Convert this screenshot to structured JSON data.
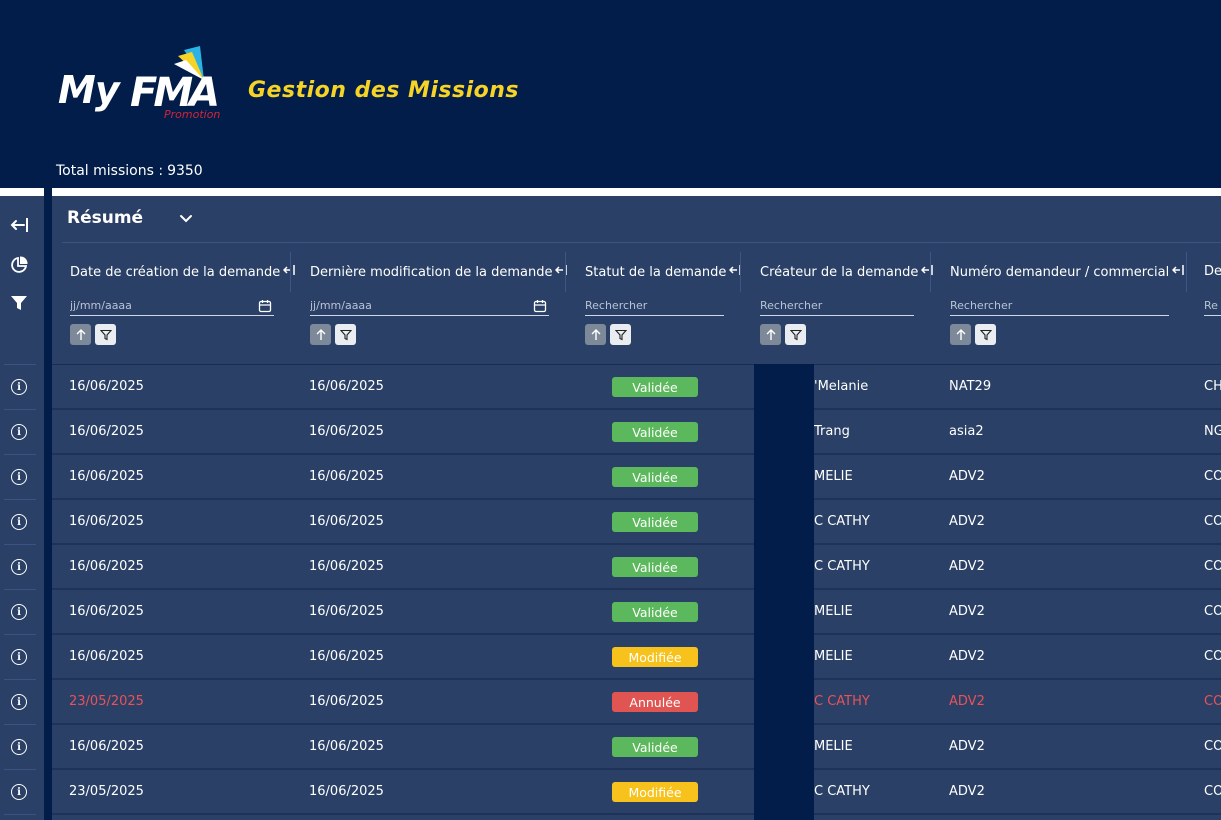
{
  "header": {
    "logo_my": "My",
    "logo_fma": "FMA",
    "logo_promo": "Promotion",
    "app_title": "Gestion des Missions",
    "total_label": "Total missions :",
    "total_value": "9350"
  },
  "colors": {
    "navy": "#021d49",
    "panel": "#2a4066",
    "accent_yellow": "#f6d327",
    "valid": "#5cb85c",
    "modified": "#f7c21b",
    "cancelled": "#e05552"
  },
  "sidebar": {
    "icons": [
      "collapse-icon",
      "pie-chart-icon",
      "filter-icon"
    ],
    "row_icon": "info-icon"
  },
  "panel": {
    "title": "Résumé"
  },
  "columns": [
    {
      "label": "Date de création de la demande",
      "placeholder": "jj/mm/aaaa",
      "type": "date"
    },
    {
      "label": "Dernière modification de la demande",
      "placeholder": "jj/mm/aaaa",
      "type": "date"
    },
    {
      "label": "Statut de la demande",
      "placeholder": "Rechercher",
      "type": "text"
    },
    {
      "label": "Créateur de la demande",
      "placeholder": "Rechercher",
      "type": "text"
    },
    {
      "label": "Numéro demandeur / commercial",
      "placeholder": "Rechercher",
      "type": "text"
    },
    {
      "label": "De",
      "placeholder": "Re",
      "type": "text"
    }
  ],
  "rows": [
    {
      "created": "16/06/2025",
      "modified": "16/06/2025",
      "status": "Validée",
      "status_type": "valid",
      "creator": "'Melanie",
      "number": "NAT29",
      "next": "CH",
      "red": false
    },
    {
      "created": "16/06/2025",
      "modified": "16/06/2025",
      "status": "Validée",
      "status_type": "valid",
      "creator": "Trang",
      "number": "asia2",
      "next": "NG",
      "red": false
    },
    {
      "created": "16/06/2025",
      "modified": "16/06/2025",
      "status": "Validée",
      "status_type": "valid",
      "creator": "MELIE",
      "number": "ADV2",
      "next": "CO",
      "red": false
    },
    {
      "created": "16/06/2025",
      "modified": "16/06/2025",
      "status": "Validée",
      "status_type": "valid",
      "creator": "C CATHY",
      "number": "ADV2",
      "next": "CO",
      "red": false
    },
    {
      "created": "16/06/2025",
      "modified": "16/06/2025",
      "status": "Validée",
      "status_type": "valid",
      "creator": "C CATHY",
      "number": "ADV2",
      "next": "CO",
      "red": false
    },
    {
      "created": "16/06/2025",
      "modified": "16/06/2025",
      "status": "Validée",
      "status_type": "valid",
      "creator": "MELIE",
      "number": "ADV2",
      "next": "CO",
      "red": false
    },
    {
      "created": "16/06/2025",
      "modified": "16/06/2025",
      "status": "Modifiée",
      "status_type": "modif",
      "creator": "MELIE",
      "number": "ADV2",
      "next": "CO",
      "red": false
    },
    {
      "created": "23/05/2025",
      "modified": "16/06/2025",
      "status": "Annulée",
      "status_type": "annul",
      "creator": "C CATHY",
      "number": "ADV2",
      "next": "CO",
      "red": true
    },
    {
      "created": "16/06/2025",
      "modified": "16/06/2025",
      "status": "Validée",
      "status_type": "valid",
      "creator": "MELIE",
      "number": "ADV2",
      "next": "CO",
      "red": false
    },
    {
      "created": "23/05/2025",
      "modified": "16/06/2025",
      "status": "Modifiée",
      "status_type": "modif",
      "creator": "C CATHY",
      "number": "ADV2",
      "next": "CO",
      "red": false
    }
  ]
}
